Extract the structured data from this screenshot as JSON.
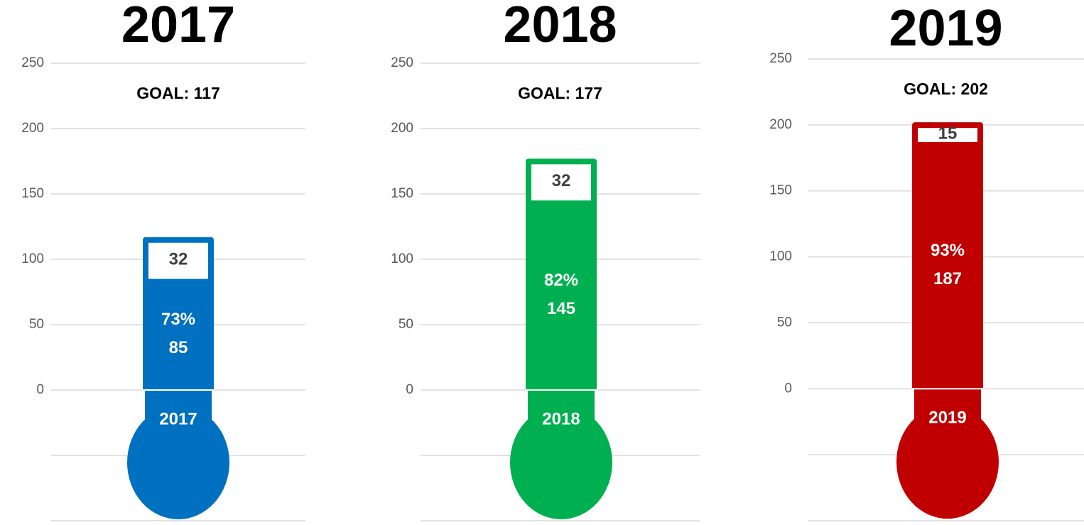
{
  "chart_data": [
    {
      "type": "thermometer",
      "title": "2017",
      "goal_label": "GOAL: 117",
      "goal": 117,
      "achieved": 85,
      "remaining": 32,
      "percent": 73,
      "percent_label": "73%",
      "label": "2017",
      "color": "#0070c0",
      "ylim": [
        -100,
        250
      ],
      "yticks": [
        0,
        50,
        100,
        150,
        200,
        250
      ],
      "grid": true
    },
    {
      "type": "thermometer",
      "title": "2018",
      "goal_label": "GOAL: 177",
      "goal": 177,
      "achieved": 145,
      "remaining": 32,
      "percent": 82,
      "percent_label": "82%",
      "label": "2018",
      "color": "#00b050",
      "ylim": [
        -100,
        250
      ],
      "yticks": [
        0,
        50,
        100,
        150,
        200,
        250
      ],
      "grid": true
    },
    {
      "type": "thermometer",
      "title": "2019",
      "goal_label": "GOAL: 202",
      "goal": 202,
      "achieved": 187,
      "remaining": 15,
      "percent": 93,
      "percent_label": "93%",
      "label": "2019",
      "color": "#c00000",
      "ylim": [
        -100,
        250
      ],
      "yticks": [
        0,
        50,
        100,
        150,
        200,
        250
      ],
      "grid": true
    }
  ]
}
